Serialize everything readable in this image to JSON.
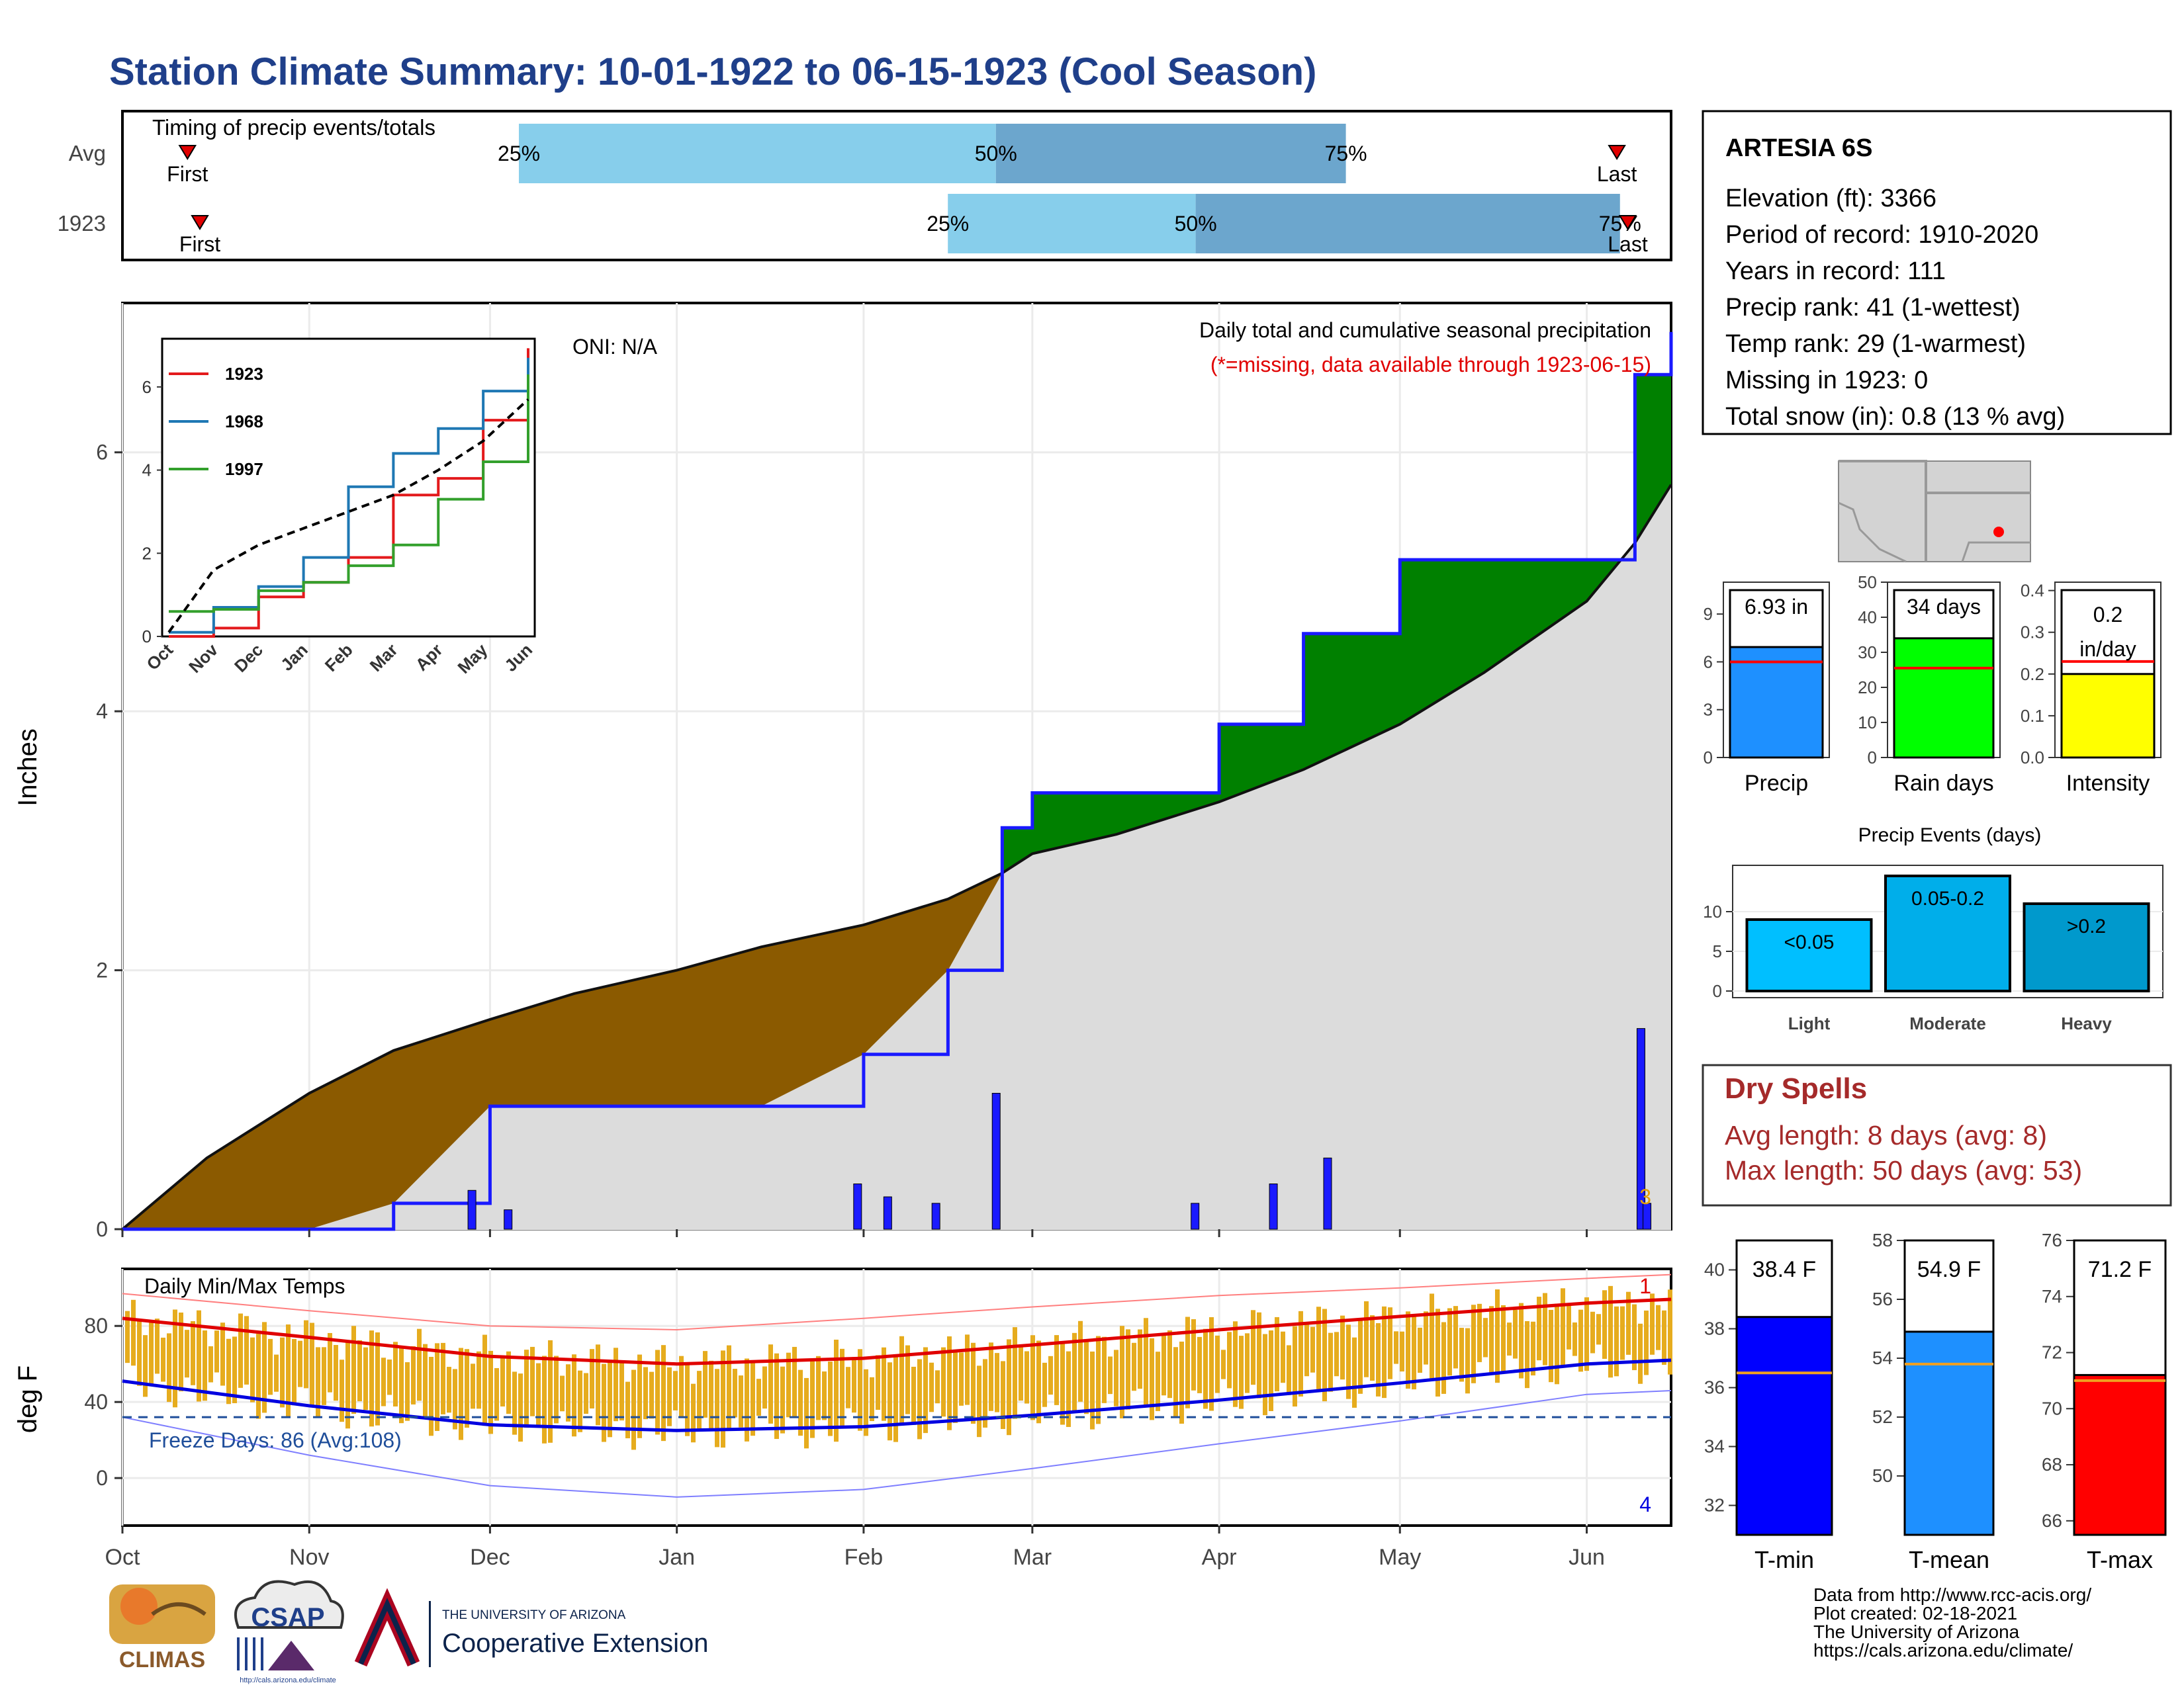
{
  "title": "Station Climate Summary: 10-01-1922 to 06-15-1923 (Cool Season)",
  "colors": {
    "title": "#1f3f8a",
    "cum_avg_fill": "#8B5A00",
    "cum_obs_fill": "#008000",
    "cum_base_fill": "#dcdcdc",
    "obs_line": "#1a1aff",
    "timing_light": "#87ceeb",
    "timing_dark": "#6ca6cd",
    "tmax_line": "#e00000",
    "tmin_line": "#0000e0",
    "temp_bar": "#e6ac1e",
    "missing_text": "#e00000",
    "dry_spell": "#a52a2a"
  },
  "timing": {
    "title": "Timing of precip events/totals",
    "rows": [
      {
        "label": "Avg",
        "first_label": "First",
        "last_label": "Last",
        "p25": "25%",
        "p50": "50%",
        "p75": "75%"
      },
      {
        "label": "1923",
        "first_label": "First",
        "last_label": "Last",
        "p25": "25%",
        "p50": "50%",
        "p75": "75%"
      }
    ]
  },
  "station": {
    "name": "ARTESIA 6S",
    "lines": [
      "Elevation (ft): 3366",
      "Period of record: 1910-2020",
      "Years in record: 111",
      "Precip rank: 41 (1-wettest)",
      "Temp rank: 29 (1-warmest)",
      "Missing in 1923: 0",
      "Total snow (in): 0.8 (13 % avg)"
    ]
  },
  "precip_panel": {
    "ylabel": "Inches",
    "oni": "ONI: N/A",
    "heading": "Daily total and cumulative seasonal precipitation",
    "missing_note": "(*=missing, data available through 1923-06-15)",
    "corner_count": "3",
    "yticks": [
      "0",
      "2",
      "4",
      "6"
    ]
  },
  "inset": {
    "yticks": [
      "0",
      "2",
      "4",
      "6"
    ],
    "months": [
      "Oct",
      "Nov",
      "Dec",
      "Jan",
      "Feb",
      "Mar",
      "Apr",
      "May",
      "Jun"
    ],
    "legend": [
      "1923",
      "1968",
      "1997"
    ],
    "legend_colors": [
      "#e31a1c",
      "#1f78b4",
      "#33a02c"
    ]
  },
  "temp_panel": {
    "title": "Daily Min/Max Temps",
    "ylabel": "deg F",
    "freeze": "Freeze Days: 86 (Avg:108)",
    "count_top": "1",
    "count_bottom": "4",
    "yticks": [
      "0",
      "40",
      "80"
    ]
  },
  "months": [
    "Oct",
    "Nov",
    "Dec",
    "Jan",
    "Feb",
    "Mar",
    "Apr",
    "May",
    "Jun"
  ],
  "mini_bars": [
    {
      "label": "Precip",
      "value_text": "6.93 in",
      "value": 6.93,
      "avg": 6.0,
      "ylim": [
        0,
        11
      ],
      "ticks": [
        "0",
        "3",
        "6",
        "9"
      ],
      "color": "#1e90ff"
    },
    {
      "label": "Rain days",
      "value_text": "34 days",
      "value": 34,
      "avg": 25.5,
      "ylim": [
        0,
        50
      ],
      "ticks": [
        "0",
        "10",
        "20",
        "30",
        "40",
        "50"
      ],
      "color": "#00ff00"
    },
    {
      "label": "Intensity",
      "value_text": "0.2 in/day",
      "value": 0.2,
      "avg": 0.23,
      "ylim": [
        0,
        0.42
      ],
      "ticks": [
        "0.0",
        "0.1",
        "0.2",
        "0.3",
        "0.4"
      ],
      "color": "#ffff00"
    }
  ],
  "events": {
    "title": "Precip Events (days)",
    "ticks": [
      "0",
      "5",
      "10"
    ],
    "bars": [
      {
        "cat": "Light",
        "label": "<0.05",
        "value": 9,
        "color": "#00bfff"
      },
      {
        "cat": "Moderate",
        "label": "0.05-0.2",
        "value": 14.5,
        "color": "#00aeea"
      },
      {
        "cat": "Heavy",
        "label": ">0.2",
        "value": 11,
        "color": "#0099cc"
      }
    ]
  },
  "dry_spells": {
    "title": "Dry Spells",
    "avg": "Avg length: 8 days (avg: 8)",
    "max": "Max length: 50 days (avg: 53)"
  },
  "temp_bars": [
    {
      "label": "T-min",
      "value_text": "38.4 F",
      "value": 38.4,
      "avg": 36.5,
      "ylim": [
        31,
        41
      ],
      "ticks": [
        "32",
        "34",
        "36",
        "38",
        "40"
      ],
      "color": "#0000ff"
    },
    {
      "label": "T-mean",
      "value_text": "54.9 F",
      "value": 54.9,
      "avg": 53.8,
      "ylim": [
        48,
        58
      ],
      "ticks": [
        "50",
        "52",
        "54",
        "56",
        "58"
      ],
      "color": "#1e90ff"
    },
    {
      "label": "T-max",
      "value_text": "71.2 F",
      "value": 71.2,
      "avg": 71.0,
      "ylim": [
        65.5,
        76
      ],
      "ticks": [
        "66",
        "68",
        "70",
        "72",
        "74",
        "76"
      ],
      "color": "#ff0000"
    }
  ],
  "footer": {
    "lines": [
      "Data from http://www.rcc-acis.org/",
      "Plot created: 02-18-2021",
      "The University of Arizona",
      "https://cals.arizona.edu/climate/"
    ],
    "climas": "CLIMAS",
    "csap": "CSAP",
    "csap_url": "http://cals.arizona.edu/climate",
    "ua_top": "THE UNIVERSITY OF ARIZONA",
    "ua_bottom": "Cooperative Extension"
  },
  "chart_data": [
    {
      "type": "area",
      "title": "Daily total and cumulative seasonal precipitation",
      "ylabel": "Inches",
      "ylim": [
        0,
        7
      ],
      "x": [
        "1922-10-01",
        "1922-10-15",
        "1922-11-01",
        "1922-11-15",
        "1922-12-01",
        "1922-12-15",
        "1923-01-01",
        "1923-01-15",
        "1923-02-01",
        "1923-02-15",
        "1923-02-24",
        "1923-03-01",
        "1923-03-15",
        "1923-04-01",
        "1923-04-15",
        "1923-05-01",
        "1923-05-15",
        "1923-06-01",
        "1923-06-09",
        "1923-06-15"
      ],
      "series": [
        {
          "name": "Average",
          "values": [
            0.0,
            0.55,
            1.05,
            1.38,
            1.62,
            1.82,
            2.0,
            2.18,
            2.35,
            2.55,
            2.75,
            2.9,
            3.05,
            3.3,
            3.55,
            3.9,
            4.3,
            4.85,
            5.3,
            5.75
          ]
        },
        {
          "name": "1923",
          "values": [
            0.0,
            0.0,
            0.0,
            0.2,
            0.95,
            0.95,
            0.95,
            0.95,
            1.35,
            2.0,
            3.1,
            3.37,
            3.37,
            3.9,
            4.6,
            5.17,
            5.17,
            5.17,
            6.6,
            6.93
          ]
        }
      ],
      "daily_events": [
        {
          "date": "1922-11-28",
          "value": 0.3
        },
        {
          "date": "1922-12-04",
          "value": 0.15
        },
        {
          "date": "1923-01-31",
          "value": 0.35
        },
        {
          "date": "1923-02-05",
          "value": 0.25
        },
        {
          "date": "1923-02-13",
          "value": 0.2
        },
        {
          "date": "1923-02-23",
          "value": 1.05
        },
        {
          "date": "1923-03-28",
          "value": 0.2
        },
        {
          "date": "1923-04-10",
          "value": 0.35
        },
        {
          "date": "1923-04-19",
          "value": 0.55
        },
        {
          "date": "1923-06-10",
          "value": 1.55
        },
        {
          "date": "1923-06-11",
          "value": 0.2
        }
      ]
    },
    {
      "type": "line",
      "title": "Daily Min/Max Temps",
      "ylabel": "deg F",
      "ylim": [
        -25,
        110
      ],
      "x": [
        "Oct",
        "Nov",
        "Dec",
        "Jan",
        "Feb",
        "Mar",
        "Apr",
        "May",
        "Jun"
      ],
      "series": [
        {
          "name": "Avg max",
          "values": [
            84,
            74,
            64,
            60,
            63,
            70,
            78,
            85,
            92
          ]
        },
        {
          "name": "Avg min",
          "values": [
            51,
            38,
            28,
            25,
            27,
            33,
            41,
            50,
            60
          ]
        },
        {
          "name": "Record high",
          "values": [
            97,
            88,
            80,
            78,
            84,
            90,
            96,
            100,
            105
          ]
        },
        {
          "name": "Record low",
          "values": [
            32,
            12,
            -4,
            -10,
            -6,
            5,
            18,
            30,
            44
          ]
        }
      ],
      "freeze_line": 32
    },
    {
      "type": "line",
      "title": "",
      "x": [
        "Oct",
        "Nov",
        "Dec",
        "Jan",
        "Feb",
        "Mar",
        "Apr",
        "May",
        "Jun"
      ],
      "ylim": [
        0,
        7
      ],
      "series": [
        {
          "name": "1923",
          "values": [
            0,
            0.2,
            0.95,
            1.3,
            1.9,
            3.4,
            3.8,
            5.2,
            6.93
          ]
        },
        {
          "name": "1968",
          "values": [
            0.1,
            0.7,
            1.2,
            1.9,
            3.6,
            4.4,
            5.0,
            5.9,
            6.7
          ]
        },
        {
          "name": "1997",
          "values": [
            0.6,
            0.65,
            1.1,
            1.3,
            1.7,
            2.2,
            3.3,
            4.2,
            6.3
          ]
        },
        {
          "values": [
            0.1,
            1.6,
            2.2,
            2.6,
            3.0,
            3.4,
            4.0,
            4.7,
            5.7
          ]
        }
      ]
    },
    {
      "type": "bar",
      "title": "Precip Events (days)",
      "categories": [
        "Light",
        "Moderate",
        "Heavy"
      ],
      "values": [
        9,
        14.5,
        11
      ]
    },
    {
      "type": "bar",
      "categories": [
        "Precip",
        "Rain days",
        "Intensity"
      ],
      "values": [
        6.93,
        34,
        0.2
      ]
    },
    {
      "type": "bar",
      "categories": [
        "T-min",
        "T-mean",
        "T-max"
      ],
      "values": [
        38.4,
        54.9,
        71.2
      ]
    }
  ]
}
